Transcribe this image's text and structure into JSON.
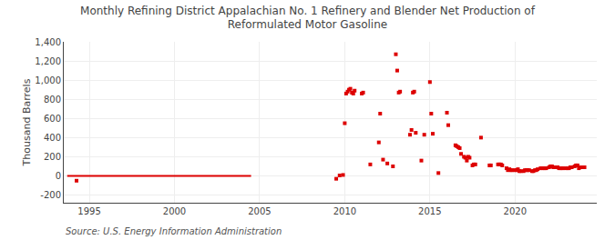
{
  "chart_data": {
    "type": "scatter",
    "title": "Monthly Refining District Appalachian No. 1 Refinery and Blender Net Production of\nReformulated Motor Gasoline",
    "ylabel": "Thousand Barrels",
    "annotations": [
      "Source: U.S. Energy Information Administration"
    ],
    "xlim": [
      1993.5,
      2024.8
    ],
    "ylim": [
      -280,
      1400
    ],
    "xticks": [
      1995,
      2000,
      2005,
      2010,
      2015,
      2020
    ],
    "yticks": [
      -200,
      0,
      200,
      400,
      600,
      800,
      {
        "value": 1000,
        "label": "1,000"
      },
      {
        "value": 1200,
        "label": "1,200"
      },
      {
        "value": 1400,
        "label": "1,400"
      }
    ],
    "grid": true,
    "series": [
      {
        "type": "line",
        "color": "#dd0000",
        "line_style": "solid",
        "x": [
          1993.7,
          2004.5
        ],
        "values": [
          0,
          0
        ]
      },
      {
        "type": "scatter",
        "color": "#dd0000",
        "marker": "square",
        "x": [
          1994.25,
          2009.5,
          2009.7,
          2009.9,
          2010.0,
          2010.08,
          2010.17,
          2010.25,
          2010.33,
          2010.42,
          2010.5,
          2010.58,
          2011.0,
          2011.08,
          2011.5,
          2012.0,
          2012.08,
          2012.25,
          2012.5,
          2012.83,
          2013.0,
          2013.08,
          2013.17,
          2013.25,
          2013.83,
          2013.92,
          2014.0,
          2014.08,
          2014.17,
          2014.5,
          2014.67,
          2015.0,
          2015.08,
          2015.17,
          2015.5,
          2016.0,
          2016.08,
          2016.5,
          2016.58,
          2016.67,
          2016.75,
          2016.83,
          2017.0,
          2017.08,
          2017.17,
          2017.25,
          2017.33,
          2017.5,
          2017.58,
          2017.67,
          2018.0,
          2018.5,
          2018.58,
          2019.0,
          2019.08,
          2019.17,
          2019.25,
          2019.5,
          2019.58,
          2019.67,
          2019.75,
          2019.83,
          2020.0,
          2020.08,
          2020.17,
          2020.25,
          2020.33,
          2020.5,
          2020.58,
          2020.67,
          2020.75,
          2020.83,
          2021.0,
          2021.08,
          2021.17,
          2021.25,
          2021.33,
          2021.5,
          2021.58,
          2021.67,
          2021.75,
          2021.83,
          2022.0,
          2022.08,
          2022.17,
          2022.25,
          2022.33,
          2022.5,
          2022.58,
          2022.67,
          2022.75,
          2022.83,
          2023.0,
          2023.08,
          2023.17,
          2023.25,
          2023.33,
          2023.5,
          2023.58,
          2023.67,
          2023.75,
          2023.83,
          2024.0,
          2024.08
        ],
        "values": [
          -50,
          -30,
          5,
          10,
          550,
          860,
          880,
          900,
          910,
          870,
          860,
          890,
          860,
          870,
          120,
          350,
          650,
          170,
          130,
          100,
          1270,
          1100,
          870,
          880,
          430,
          480,
          870,
          880,
          450,
          160,
          430,
          980,
          650,
          440,
          30,
          660,
          530,
          320,
          310,
          300,
          290,
          230,
          200,
          190,
          160,
          200,
          190,
          110,
          120,
          120,
          400,
          110,
          110,
          120,
          120,
          120,
          110,
          80,
          60,
          70,
          60,
          60,
          60,
          60,
          70,
          50,
          50,
          50,
          60,
          60,
          60,
          60,
          50,
          50,
          60,
          60,
          70,
          80,
          80,
          80,
          80,
          80,
          90,
          100,
          100,
          90,
          90,
          90,
          80,
          80,
          80,
          80,
          80,
          80,
          80,
          90,
          90,
          100,
          110,
          110,
          80,
          90,
          90,
          90
        ]
      }
    ]
  }
}
